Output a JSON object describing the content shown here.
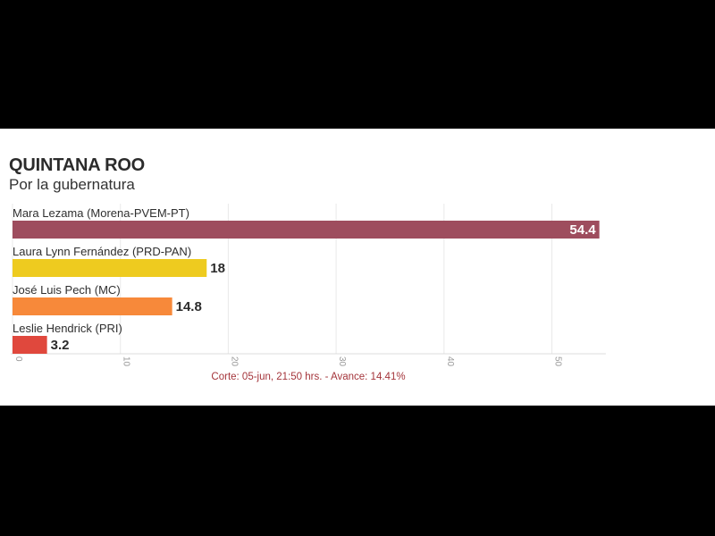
{
  "chart_data": {
    "type": "bar",
    "orientation": "horizontal",
    "title": "QUINTANA ROO",
    "subtitle": "Por la gubernatura",
    "categories": [
      "Mara Lezama (Morena-PVEM-PT)",
      "Laura Lynn Fernández (PRD-PAN)",
      "José Luis Pech (MC)",
      "Leslie Hendrick (PRI)"
    ],
    "values": [
      54.4,
      18,
      14.8,
      3.2
    ],
    "value_labels": [
      "54.4",
      "18",
      "14.8",
      "3.2"
    ],
    "colors": [
      "#9e4d5e",
      "#eecb1f",
      "#f7893a",
      "#e0483d"
    ],
    "xlim": [
      0,
      55
    ],
    "x_ticks": [
      0,
      10,
      20,
      30,
      40,
      50
    ],
    "x_tick_labels": [
      "0",
      "10",
      "20",
      "30",
      "40",
      "50"
    ],
    "grid": true,
    "footer": "Corte: 05-jun, 21:50 hrs. - Avance: 14.41%"
  }
}
